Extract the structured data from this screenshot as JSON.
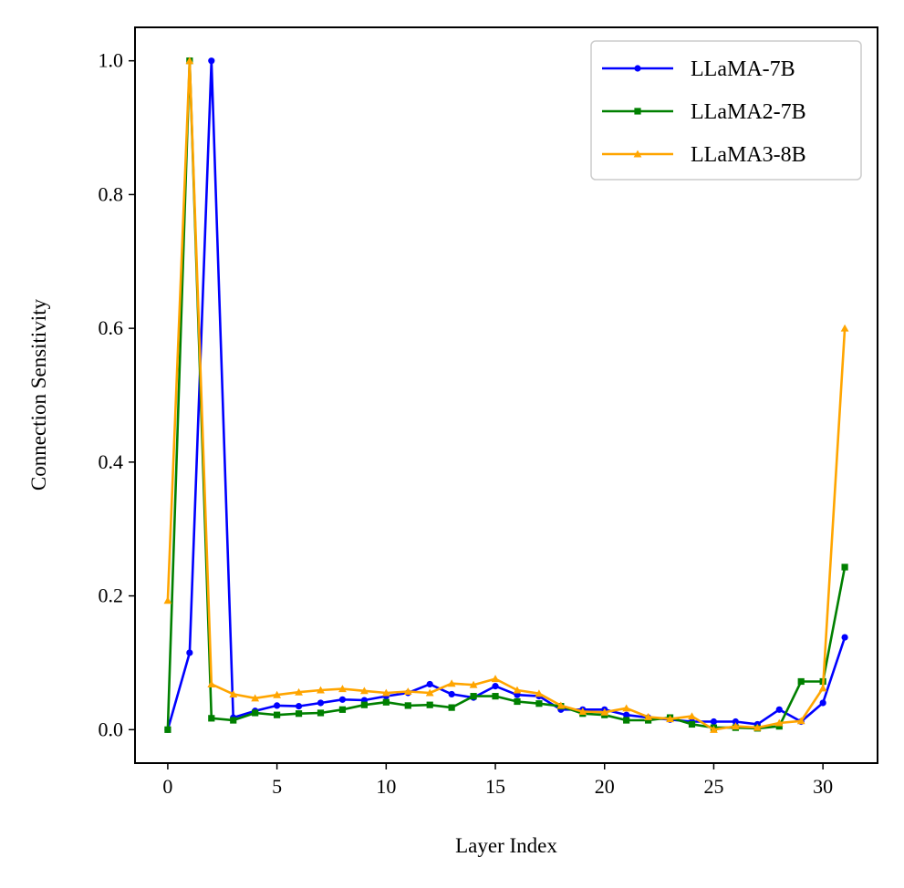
{
  "chart_data": {
    "type": "line",
    "xlabel": "Layer Index",
    "ylabel": "Connection Sensitivity",
    "xlim": [
      -1.5,
      32.5
    ],
    "ylim": [
      -0.05,
      1.05
    ],
    "xticks": [
      0,
      5,
      10,
      15,
      20,
      25,
      30
    ],
    "yticks": [
      0.0,
      0.2,
      0.4,
      0.6,
      0.8,
      1.0
    ],
    "xtick_labels": [
      "0",
      "5",
      "10",
      "15",
      "20",
      "25",
      "30"
    ],
    "ytick_labels": [
      "0.0",
      "0.2",
      "0.4",
      "0.6",
      "0.8",
      "1.0"
    ],
    "grid": false,
    "legend_position": "top-right",
    "x": [
      0,
      1,
      2,
      3,
      4,
      5,
      6,
      7,
      8,
      9,
      10,
      11,
      12,
      13,
      14,
      15,
      16,
      17,
      18,
      19,
      20,
      21,
      22,
      23,
      24,
      25,
      26,
      27,
      28,
      29,
      30,
      31
    ],
    "series": [
      {
        "name": "LLaMA-7B",
        "color": "#0000ff",
        "marker": "circle",
        "values": [
          0.0,
          0.115,
          1.0,
          0.018,
          0.028,
          0.036,
          0.035,
          0.04,
          0.045,
          0.044,
          0.05,
          0.055,
          0.068,
          0.053,
          0.048,
          0.065,
          0.052,
          0.05,
          0.03,
          0.03,
          0.03,
          0.022,
          0.018,
          0.015,
          0.012,
          0.012,
          0.012,
          0.008,
          0.03,
          0.012,
          0.04,
          0.138
        ]
      },
      {
        "name": "LLaMA2-7B",
        "color": "#008000",
        "marker": "square",
        "values": [
          0.0,
          1.0,
          0.017,
          0.014,
          0.025,
          0.022,
          0.024,
          0.025,
          0.03,
          0.037,
          0.041,
          0.036,
          0.037,
          0.033,
          0.05,
          0.05,
          0.042,
          0.039,
          0.035,
          0.024,
          0.022,
          0.014,
          0.014,
          0.018,
          0.008,
          0.003,
          0.003,
          0.002,
          0.005,
          0.072,
          0.072,
          0.243
        ]
      },
      {
        "name": "LLaMA3-8B",
        "color": "#ffa500",
        "marker": "triangle",
        "values": [
          0.193,
          1.0,
          0.068,
          0.053,
          0.047,
          0.052,
          0.056,
          0.059,
          0.061,
          0.058,
          0.055,
          0.057,
          0.055,
          0.069,
          0.067,
          0.076,
          0.059,
          0.054,
          0.036,
          0.027,
          0.026,
          0.032,
          0.019,
          0.016,
          0.02,
          0.0,
          0.005,
          0.003,
          0.01,
          0.013,
          0.062,
          0.6
        ]
      }
    ]
  }
}
